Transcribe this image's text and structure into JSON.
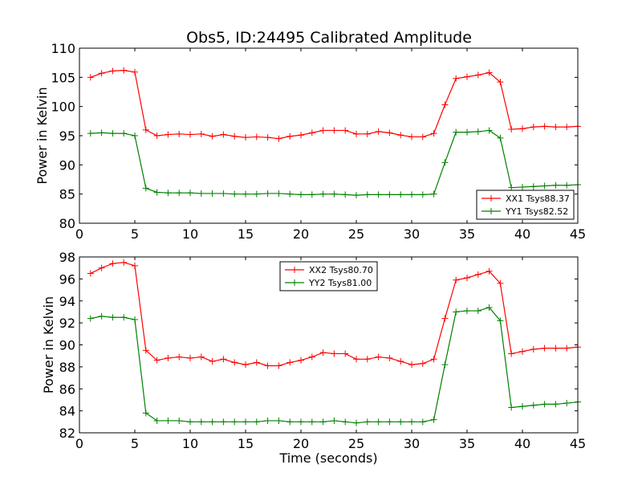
{
  "chart_data": [
    {
      "type": "line",
      "title": "Obs5, ID:24495 Calibrated Amplitude",
      "xlabel": "",
      "ylabel": "Power in Kelvin",
      "xlim": [
        0,
        45
      ],
      "ylim": [
        80,
        110
      ],
      "xticks": [
        0,
        5,
        10,
        15,
        20,
        25,
        30,
        35,
        40,
        45
      ],
      "yticks": [
        80,
        85,
        90,
        95,
        100,
        105,
        110
      ],
      "grid": false,
      "legend": "lower-right",
      "x": [
        1,
        2,
        3,
        4,
        5,
        6,
        7,
        8,
        9,
        10,
        11,
        12,
        13,
        14,
        15,
        16,
        17,
        18,
        19,
        20,
        21,
        22,
        23,
        24,
        25,
        26,
        27,
        28,
        29,
        30,
        31,
        32,
        33,
        34,
        35,
        36,
        37,
        38,
        39,
        40,
        41,
        42,
        43,
        44,
        45
      ],
      "series": [
        {
          "name": "XX1 Tsys88.37",
          "color": "#ff0000",
          "values": [
            105.0,
            105.7,
            106.1,
            106.2,
            105.9,
            96.0,
            95.0,
            95.2,
            95.3,
            95.2,
            95.3,
            94.9,
            95.2,
            94.9,
            94.7,
            94.8,
            94.7,
            94.5,
            94.9,
            95.1,
            95.5,
            95.9,
            95.9,
            95.9,
            95.3,
            95.3,
            95.7,
            95.5,
            95.1,
            94.8,
            94.8,
            95.4,
            100.3,
            104.8,
            105.1,
            105.4,
            105.8,
            104.2,
            96.1,
            96.2,
            96.5,
            96.6,
            96.5,
            96.5,
            96.6
          ]
        },
        {
          "name": "YY1 Tsys82.52",
          "color": "#008000",
          "values": [
            95.4,
            95.5,
            95.4,
            95.4,
            95.0,
            86.0,
            85.3,
            85.2,
            85.2,
            85.2,
            85.1,
            85.1,
            85.1,
            85.0,
            85.0,
            85.0,
            85.1,
            85.1,
            85.0,
            84.9,
            84.9,
            85.0,
            85.0,
            84.9,
            84.8,
            84.9,
            84.9,
            84.9,
            84.9,
            84.9,
            84.9,
            85.0,
            90.4,
            95.6,
            95.6,
            95.7,
            95.9,
            94.6,
            86.1,
            86.2,
            86.3,
            86.4,
            86.5,
            86.5,
            86.6
          ]
        }
      ]
    },
    {
      "type": "line",
      "title": "",
      "xlabel": "Time (seconds)",
      "ylabel": "Power in Kelvin",
      "xlim": [
        0,
        45
      ],
      "ylim": [
        82,
        98
      ],
      "xticks": [
        0,
        5,
        10,
        15,
        20,
        25,
        30,
        35,
        40,
        45
      ],
      "yticks": [
        82,
        84,
        86,
        88,
        90,
        92,
        94,
        96,
        98
      ],
      "grid": false,
      "legend": "upper-center",
      "x": [
        1,
        2,
        3,
        4,
        5,
        6,
        7,
        8,
        9,
        10,
        11,
        12,
        13,
        14,
        15,
        16,
        17,
        18,
        19,
        20,
        21,
        22,
        23,
        24,
        25,
        26,
        27,
        28,
        29,
        30,
        31,
        32,
        33,
        34,
        35,
        36,
        37,
        38,
        39,
        40,
        41,
        42,
        43,
        44,
        45
      ],
      "series": [
        {
          "name": "XX2 Tsys80.70",
          "color": "#ff0000",
          "values": [
            96.5,
            97.0,
            97.4,
            97.5,
            97.2,
            89.5,
            88.6,
            88.8,
            88.9,
            88.8,
            88.9,
            88.5,
            88.7,
            88.4,
            88.2,
            88.4,
            88.1,
            88.1,
            88.4,
            88.6,
            88.9,
            89.3,
            89.2,
            89.2,
            88.7,
            88.7,
            88.9,
            88.8,
            88.5,
            88.2,
            88.3,
            88.7,
            92.4,
            95.9,
            96.1,
            96.4,
            96.7,
            95.6,
            89.2,
            89.4,
            89.6,
            89.7,
            89.7,
            89.7,
            89.8
          ]
        },
        {
          "name": "YY2 Tsys81.00",
          "color": "#008000",
          "values": [
            92.4,
            92.6,
            92.5,
            92.5,
            92.3,
            83.8,
            83.1,
            83.1,
            83.1,
            83.0,
            83.0,
            83.0,
            83.0,
            83.0,
            83.0,
            83.0,
            83.1,
            83.1,
            83.0,
            83.0,
            83.0,
            83.0,
            83.1,
            83.0,
            82.9,
            83.0,
            83.0,
            83.0,
            83.0,
            83.0,
            83.0,
            83.2,
            88.2,
            93.0,
            93.1,
            93.1,
            93.4,
            92.2,
            84.3,
            84.4,
            84.5,
            84.6,
            84.6,
            84.7,
            84.8
          ]
        }
      ]
    }
  ]
}
